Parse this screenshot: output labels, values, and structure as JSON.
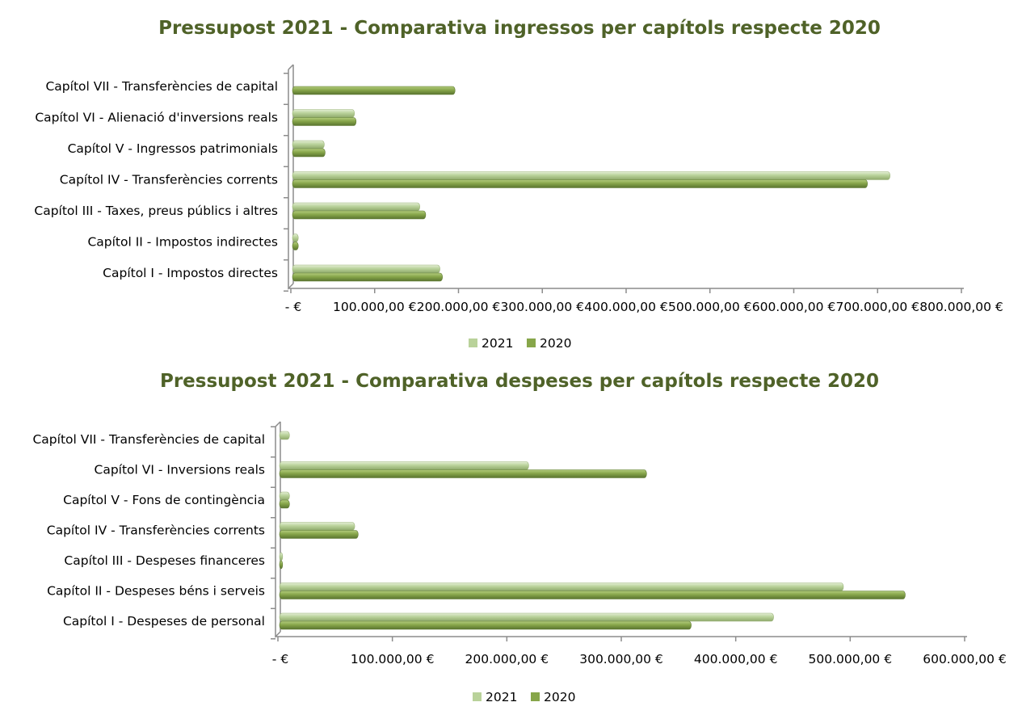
{
  "colors": {
    "s2021": "#b9d29a",
    "s2020": "#87a64a",
    "title": "#4f6228"
  },
  "chart_data": [
    {
      "type": "bar",
      "orientation": "horizontal",
      "title": "Pressupost 2021 - Comparativa ingressos per capítols respecte 2020",
      "categories": [
        "Capítol VII - Transferències de capital",
        "Capítol VI - Alienació d'inversions reals",
        "Capítol V - Ingressos patrimonials",
        "Capítol IV - Transferències corrents",
        "Capítol III - Taxes, preus públics i altres",
        "Capítol II - Impostos indirectes",
        "Capítol I - Impostos directes"
      ],
      "series": [
        {
          "name": "2021",
          "values": [
            0,
            73000,
            37000,
            712000,
            151000,
            6000,
            175000
          ]
        },
        {
          "name": "2020",
          "values": [
            193000,
            75000,
            38000,
            685000,
            158000,
            6000,
            178000
          ]
        }
      ],
      "xlim": [
        0,
        800000
      ],
      "tick_labels": [
        "-   €",
        "100.000,00 €",
        "200.000,00 €",
        "300.000,00 €",
        "400.000,00 €",
        "500.000,00 €",
        "600.000,00 €",
        "700.000,00 €",
        "800.000,00 €"
      ],
      "legend": [
        "2021",
        "2020"
      ],
      "legend_position": "bottom",
      "grid": false
    },
    {
      "type": "bar",
      "orientation": "horizontal",
      "title": "Pressupost 2021 - Comparativa despeses per capítols respecte 2020",
      "categories": [
        "Capítol VII - Transferències de capital",
        "Capítol VI - Inversions reals",
        "Capítol V - Fons de contingència",
        "Capítol IV - Transferències corrents",
        "Capítol III - Despeses financeres",
        "Capítol II - Despeses béns i serveis",
        "Capítol I - Despeses de personal"
      ],
      "series": [
        {
          "name": "2021",
          "values": [
            8000,
            217000,
            8000,
            65000,
            2000,
            492000,
            431000
          ]
        },
        {
          "name": "2020",
          "values": [
            0,
            320000,
            8000,
            68000,
            2000,
            546000,
            359000
          ]
        }
      ],
      "xlim": [
        0,
        600000
      ],
      "tick_labels": [
        "-   €",
        "100.000,00 €",
        "200.000,00 €",
        "300.000,00 €",
        "400.000,00 €",
        "500.000,00 €",
        "600.000,00 €"
      ],
      "legend": [
        "2021",
        "2020"
      ],
      "legend_position": "bottom",
      "grid": false
    }
  ]
}
